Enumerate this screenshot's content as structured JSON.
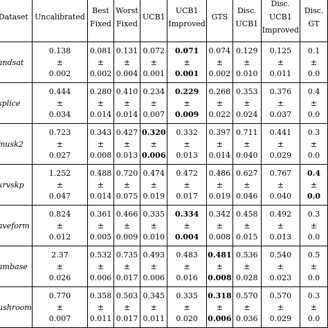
{
  "headers": [
    [
      "Dataset"
    ],
    [
      "Uncalibrated"
    ],
    [
      "Best",
      "Fixed"
    ],
    [
      "Worst",
      "Fixed"
    ],
    [
      "UCB1"
    ],
    [
      "UCB1",
      "Improved"
    ],
    [
      "GTS"
    ],
    [
      "Disc.",
      "UCB1"
    ],
    [
      "Disc.",
      "UCB1",
      "Improved"
    ],
    [
      "Disc.",
      "GT"
    ]
  ],
  "rows": [
    {
      "name": "andsat",
      "cells": [
        {
          "top": "0.138",
          "bot": "0.002"
        },
        {
          "top": "0.081",
          "bot": "0.002"
        },
        {
          "top": "0.131",
          "bot": "0.004"
        },
        {
          "top": "0.072",
          "bot": "0.001"
        },
        {
          "top": "0.071",
          "bot": "0.001",
          "bold": true
        },
        {
          "top": "0.074",
          "bot": "0.002"
        },
        {
          "top": "0.129",
          "bot": "0.010"
        },
        {
          "top": "0.125",
          "bot": "0.011"
        },
        {
          "top": "0.1",
          "bot": "0.0"
        }
      ]
    },
    {
      "name": "splice",
      "cells": [
        {
          "top": "0.444",
          "bot": "0.034"
        },
        {
          "top": "0.280",
          "bot": "0.014"
        },
        {
          "top": "0.410",
          "bot": "0.014"
        },
        {
          "top": "0.234",
          "bot": "0.007"
        },
        {
          "top": "0.229",
          "bot": "0.009",
          "bold": true
        },
        {
          "top": "0.268",
          "bot": "0.022"
        },
        {
          "top": "0.353",
          "bot": "0.024"
        },
        {
          "top": "0.376",
          "bot": "0.037"
        },
        {
          "top": "0.4",
          "bot": "0.0"
        }
      ]
    },
    {
      "name": "musk2",
      "cells": [
        {
          "top": "0.723",
          "bot": "0.027"
        },
        {
          "top": "0.343",
          "bot": "0.008"
        },
        {
          "top": "0.427",
          "bot": "0.013"
        },
        {
          "top": "0.320",
          "bot": "0.006",
          "bold": true
        },
        {
          "top": "0.332",
          "bot": "0.013"
        },
        {
          "top": "0.397",
          "bot": "0.014"
        },
        {
          "top": "0.711",
          "bot": "0.040"
        },
        {
          "top": "0.441",
          "bot": "0.029"
        },
        {
          "top": "0.3",
          "bot": "0.0"
        }
      ]
    },
    {
      "name": "krvskp",
      "cells": [
        {
          "top": "1.252",
          "bot": "0.047"
        },
        {
          "top": "0.488",
          "bot": "0.014"
        },
        {
          "top": "0.720",
          "bot": "0.075"
        },
        {
          "top": "0.474",
          "bot": "0.019"
        },
        {
          "top": "0.472",
          "bot": "0.017"
        },
        {
          "top": "0.486",
          "bot": "0.019"
        },
        {
          "top": "0.627",
          "bot": "0.046"
        },
        {
          "top": "0.767",
          "bot": "0.040"
        },
        {
          "top": "0.4",
          "bot": "0.0",
          "bold": true
        }
      ]
    },
    {
      "name": "aveform",
      "cells": [
        {
          "top": "0.824",
          "bot": "0.012"
        },
        {
          "top": "0.361",
          "bot": "0.005"
        },
        {
          "top": "0.466",
          "bot": "0.009"
        },
        {
          "top": "0.335",
          "bot": "0.010"
        },
        {
          "top": "0.334",
          "bot": "0.004",
          "bold": true
        },
        {
          "top": "0.342",
          "bot": "0.008"
        },
        {
          "top": "0.458",
          "bot": "0.015"
        },
        {
          "top": "0.492",
          "bot": "0.013"
        },
        {
          "top": "0.3",
          "bot": "0.0"
        }
      ]
    },
    {
      "name": "ambase",
      "cells": [
        {
          "top": "2.37",
          "bot": "0.026"
        },
        {
          "top": "0.532",
          "bot": "0.006"
        },
        {
          "top": "0.735",
          "bot": "0.017"
        },
        {
          "top": "0.493",
          "bot": "0.006"
        },
        {
          "top": "0.483",
          "bot": "0.016"
        },
        {
          "top": "0.481",
          "bot": "0.008",
          "bold": true
        },
        {
          "top": "0.536",
          "bot": "0.028"
        },
        {
          "top": "0.540",
          "bot": "0.023"
        },
        {
          "top": "0.5",
          "bot": "0.0"
        }
      ]
    },
    {
      "name": "ushroom",
      "cells": [
        {
          "top": "0.770",
          "bot": "0.007"
        },
        {
          "top": "0.358",
          "bot": "0.011"
        },
        {
          "top": "0.503",
          "bot": "0.017"
        },
        {
          "top": "0.345",
          "bot": "0.011"
        },
        {
          "top": "0.335",
          "bot": "0.020"
        },
        {
          "top": "0.318",
          "bot": "0.006",
          "bold": true
        },
        {
          "top": "0.570",
          "bot": "0.036"
        },
        {
          "top": "0.570",
          "bot": "0.029"
        },
        {
          "top": "0.3",
          "bot": "0.0"
        }
      ]
    }
  ],
  "pm": "±"
}
